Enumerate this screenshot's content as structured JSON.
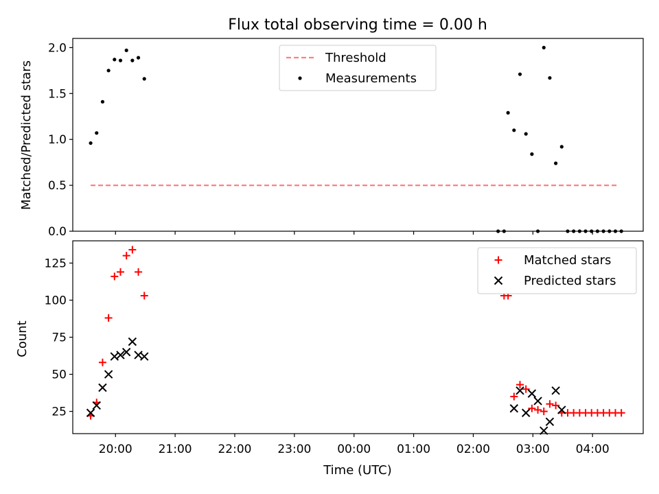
{
  "title": "Flux total observing time = 0.00 h",
  "colors": {
    "threshold": "#ff7f7f",
    "measurements": "#000000",
    "matched": "#ff0000",
    "predicted": "#000000"
  },
  "chart_data": [
    {
      "type": "scatter",
      "panel": "top",
      "ylabel": "Matched/Predicted stars",
      "ylim": [
        0,
        2.1
      ],
      "yticks": [
        "0.0",
        "0.5",
        "1.0",
        "1.5",
        "2.0"
      ],
      "xlim": [
        "19:17",
        "04:51"
      ],
      "grid": false,
      "legend_position": "top-center",
      "legend": [
        "Threshold",
        "Measurements"
      ],
      "series": [
        {
          "name": "Threshold",
          "style": "dashed-line",
          "points": [
            [
              "19:35",
              0.5
            ],
            [
              "04:25",
              0.5
            ]
          ]
        },
        {
          "name": "Measurements",
          "style": "dot",
          "points": [
            [
              "19:35",
              0.96
            ],
            [
              "19:41",
              1.07
            ],
            [
              "19:47",
              1.41
            ],
            [
              "19:53",
              1.75
            ],
            [
              "19:59",
              1.87
            ],
            [
              "20:05",
              1.86
            ],
            [
              "20:11",
              1.97
            ],
            [
              "20:17",
              1.86
            ],
            [
              "20:23",
              1.89
            ],
            [
              "20:29",
              1.66
            ],
            [
              "02:25",
              0.0
            ],
            [
              "02:31",
              0.0
            ],
            [
              "02:35",
              1.29
            ],
            [
              "02:41",
              1.1
            ],
            [
              "02:47",
              1.71
            ],
            [
              "02:53",
              1.06
            ],
            [
              "02:59",
              0.84
            ],
            [
              "03:05",
              0.0
            ],
            [
              "03:11",
              2.0
            ],
            [
              "03:17",
              1.67
            ],
            [
              "03:23",
              0.74
            ],
            [
              "03:29",
              0.92
            ],
            [
              "03:35",
              0.0
            ],
            [
              "03:41",
              0.0
            ],
            [
              "03:47",
              0.0
            ],
            [
              "03:53",
              0.0
            ],
            [
              "03:59",
              0.0
            ],
            [
              "04:05",
              0.0
            ],
            [
              "04:11",
              0.0
            ],
            [
              "04:17",
              0.0
            ],
            [
              "04:23",
              0.0
            ],
            [
              "04:29",
              0.0
            ]
          ]
        }
      ]
    },
    {
      "type": "scatter",
      "panel": "bottom",
      "xlabel": "Time (UTC)",
      "ylabel": "Count",
      "ylim": [
        10,
        140
      ],
      "yticks": [
        "25",
        "50",
        "75",
        "100",
        "125"
      ],
      "xlim": [
        "19:17",
        "04:51"
      ],
      "xticks": [
        "20:00",
        "21:00",
        "22:00",
        "23:00",
        "00:00",
        "01:00",
        "02:00",
        "03:00",
        "04:00"
      ],
      "grid": false,
      "legend_position": "top-right",
      "legend": [
        "Matched stars",
        "Predicted stars"
      ],
      "series": [
        {
          "name": "Matched stars",
          "marker": "plus",
          "points": [
            [
              "19:35",
              22
            ],
            [
              "19:41",
              31
            ],
            [
              "19:47",
              58
            ],
            [
              "19:53",
              88
            ],
            [
              "19:59",
              116
            ],
            [
              "20:05",
              119
            ],
            [
              "20:11",
              130
            ],
            [
              "20:17",
              134
            ],
            [
              "20:23",
              119
            ],
            [
              "20:29",
              103
            ],
            [
              "02:31",
              103
            ],
            [
              "02:35",
              103
            ],
            [
              "02:41",
              35
            ],
            [
              "02:47",
              43
            ],
            [
              "02:53",
              40
            ],
            [
              "02:59",
              27
            ],
            [
              "03:05",
              26
            ],
            [
              "03:11",
              25
            ],
            [
              "03:17",
              30
            ],
            [
              "03:23",
              29
            ],
            [
              "03:29",
              24
            ],
            [
              "03:35",
              24
            ],
            [
              "03:41",
              24
            ],
            [
              "03:47",
              24
            ],
            [
              "03:53",
              24
            ],
            [
              "03:59",
              24
            ],
            [
              "04:05",
              24
            ],
            [
              "04:11",
              24
            ],
            [
              "04:17",
              24
            ],
            [
              "04:23",
              24
            ],
            [
              "04:29",
              24
            ]
          ]
        },
        {
          "name": "Predicted stars",
          "marker": "x",
          "points": [
            [
              "19:35",
              24
            ],
            [
              "19:41",
              29
            ],
            [
              "19:47",
              41
            ],
            [
              "19:53",
              50
            ],
            [
              "19:59",
              62
            ],
            [
              "20:05",
              63
            ],
            [
              "20:11",
              65
            ],
            [
              "20:17",
              72
            ],
            [
              "20:23",
              63
            ],
            [
              "20:29",
              62
            ],
            [
              "02:41",
              27
            ],
            [
              "02:47",
              39
            ],
            [
              "02:53",
              24
            ],
            [
              "02:59",
              37
            ],
            [
              "03:05",
              32
            ],
            [
              "03:11",
              12
            ],
            [
              "03:17",
              18
            ],
            [
              "03:23",
              39
            ],
            [
              "03:29",
              26
            ]
          ]
        }
      ]
    }
  ]
}
